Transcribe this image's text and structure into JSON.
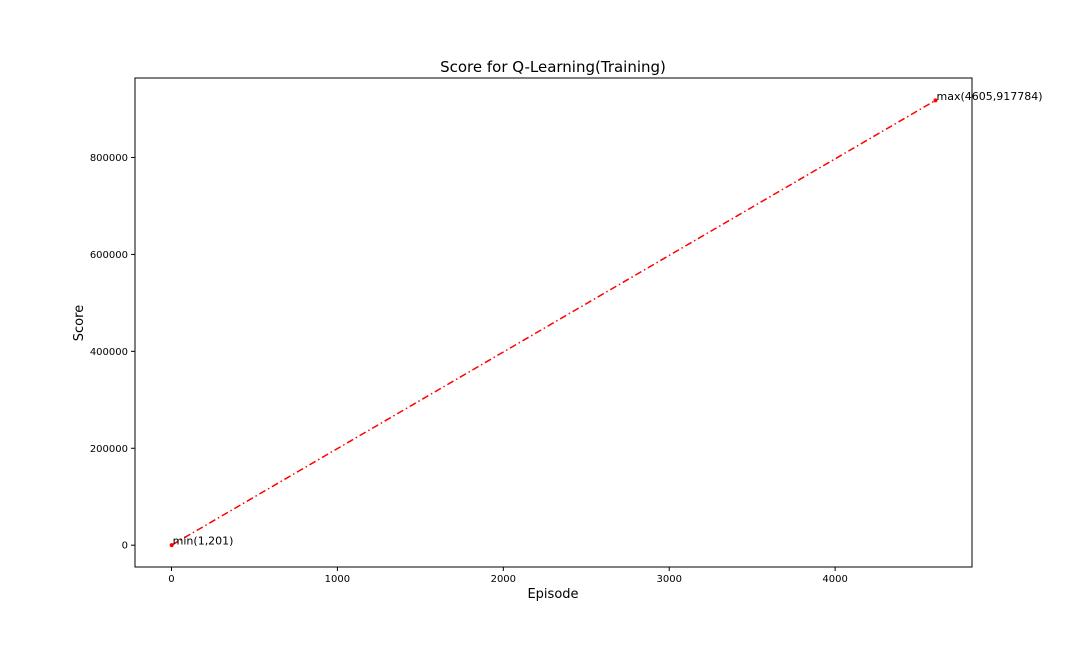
{
  "chart_data": {
    "type": "line",
    "title": "Score for Q-Learning(Training)",
    "xlabel": "Episode",
    "ylabel": "Score",
    "xlim": [
      -220,
      4825
    ],
    "ylim": [
      -45000,
      964000
    ],
    "xticks": [
      0,
      1000,
      2000,
      3000,
      4000
    ],
    "yticks": [
      0,
      200000,
      400000,
      600000,
      800000
    ],
    "xtick_labels": [
      "0",
      "1000",
      "2000",
      "3000",
      "4000"
    ],
    "ytick_labels": [
      "0",
      "200000",
      "400000",
      "600000",
      "800000"
    ],
    "grid": false,
    "series": [
      {
        "color": "#ff0000",
        "linestyle": "dashdot",
        "x": [
          1,
          4605
        ],
        "y": [
          201,
          917784
        ]
      }
    ],
    "annotations": [
      {
        "text": "min(1,201)",
        "x": 1,
        "y": 201
      },
      {
        "text": "max(4605,917784)",
        "x": 4605,
        "y": 917784
      }
    ],
    "colors": {
      "line": "#ff0000",
      "marker": "#ff0000",
      "axes": "#000000"
    }
  }
}
